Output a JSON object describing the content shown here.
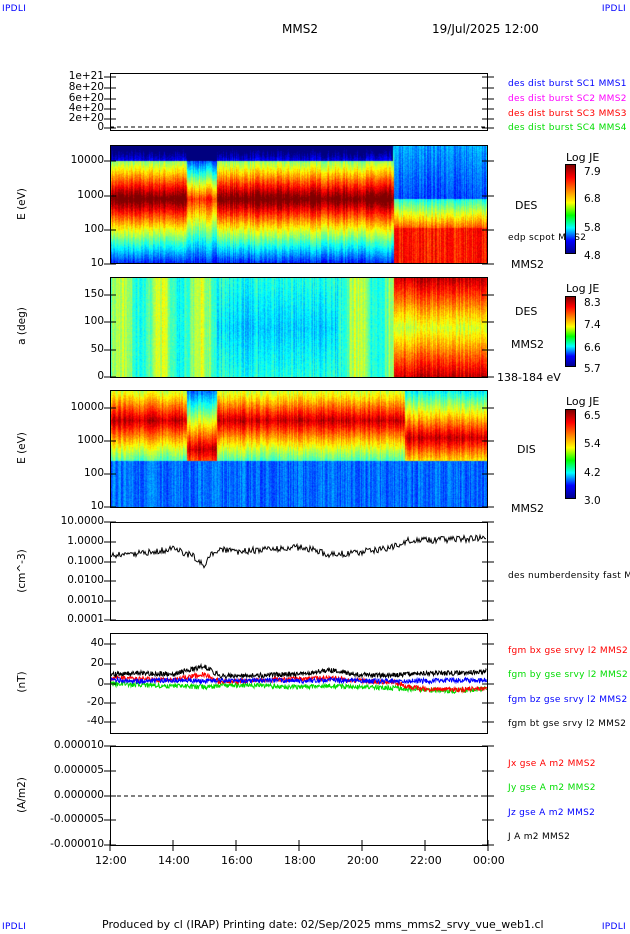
{
  "header": {
    "corner_left": "IPDLI",
    "corner_right": "IPDLI",
    "spacecraft": "MMS2",
    "datetime": "19/Jul/2025 12:00"
  },
  "footer": {
    "text": "Produced by cl (IRAP)   Printing date: 02/Sep/2025   mms_mms2_srvy_vue_web1.cl",
    "corner_left": "IPDLI",
    "corner_right": "IPDLI"
  },
  "xaxis": {
    "ticks": [
      "12:00",
      "14:00",
      "16:00",
      "18:00",
      "20:00",
      "22:00",
      "00:00"
    ]
  },
  "colors": {
    "red": "#ff0000",
    "green": "#00dd00",
    "blue": "#0000ff",
    "magenta": "#ff00ff",
    "black": "#000000"
  },
  "chart_data": [
    {
      "type": "line",
      "yticks": [
        "1e+21",
        "8e+20",
        "6e+20",
        "4e+20",
        "2e+20",
        "0"
      ],
      "ylim": [
        0,
        1e+21
      ],
      "legend": [
        {
          "label": "des dist burst SC1 MMS1",
          "color": "#0000ff"
        },
        {
          "label": "des dist burst SC2 MMS2",
          "color": "#ff00ff"
        },
        {
          "label": "des dist burst SC3 MMS3",
          "color": "#ff0000"
        },
        {
          "label": "des dist burst SC4 MMS4",
          "color": "#00dd00"
        }
      ],
      "reference_line": 0
    },
    {
      "type": "heatmap",
      "ylabel": "E (eV)",
      "yscale": "log",
      "ylim": [
        10,
        30000
      ],
      "yticks": [
        "10000",
        "1000",
        "100",
        "10"
      ],
      "colorbar_title": "Log JE",
      "colorbar_ticks": [
        "7.9",
        "6.8",
        "5.8",
        "4.8"
      ],
      "colormap": "jet",
      "labels": [
        "DES",
        "edp scpot MMS2",
        "MMS2"
      ]
    },
    {
      "type": "heatmap",
      "ylabel": "a (deg)",
      "ylim": [
        0,
        180
      ],
      "yticks": [
        "150",
        "100",
        "50",
        "0"
      ],
      "colorbar_title": "Log JE",
      "colorbar_ticks": [
        "8.3",
        "7.4",
        "6.6",
        "5.7"
      ],
      "colormap": "jet",
      "labels": [
        "DES",
        "MMS2",
        "138-184 eV"
      ]
    },
    {
      "type": "heatmap",
      "ylabel": "E (eV)",
      "yscale": "log",
      "ylim": [
        10,
        30000
      ],
      "yticks": [
        "10000",
        "1000",
        "100",
        "10"
      ],
      "colorbar_title": "Log JE",
      "colorbar_ticks": [
        "6.5",
        "5.4",
        "4.2",
        "3.0"
      ],
      "colormap": "jet",
      "labels": [
        "DIS",
        "MMS2"
      ]
    },
    {
      "type": "line",
      "ylabel": "(cm^-3)",
      "yscale": "log",
      "ylim": [
        0.0001,
        10
      ],
      "yticks": [
        "10.0000",
        "1.0000",
        "0.1000",
        "0.0100",
        "0.0010",
        "0.0001"
      ],
      "legend": [
        {
          "label": "des numberdensity fast M",
          "color": "#000000"
        }
      ],
      "series": [
        {
          "x": [
            "12:00",
            "13:00",
            "14:00",
            "15:00",
            "15:30",
            "16:00",
            "17:00",
            "18:00",
            "19:00",
            "20:00",
            "21:00",
            "21:30",
            "22:00",
            "23:00",
            "00:00"
          ],
          "values": [
            0.2,
            0.25,
            0.4,
            0.05,
            0.4,
            0.3,
            0.4,
            0.5,
            0.2,
            0.3,
            0.5,
            1.2,
            1.2,
            1.3,
            1.6
          ]
        }
      ]
    },
    {
      "type": "line",
      "ylabel": "(nT)",
      "ylim": [
        -50,
        50
      ],
      "yticks": [
        "40",
        "20",
        "0",
        "-20",
        "-40"
      ],
      "legend": [
        {
          "label": "fgm bx gse srvy l2 MMS2",
          "color": "#ff0000"
        },
        {
          "label": "fgm by gse srvy l2 MMS2",
          "color": "#00dd00"
        },
        {
          "label": "fgm bz gse srvy l2 MMS2",
          "color": "#0000ff"
        },
        {
          "label": "fgm bt gse srvy l2 MMS2",
          "color": "#000000"
        }
      ],
      "series": [
        {
          "name": "fgm bx gse srvy l2 MMS2",
          "values": [
            6,
            5,
            4,
            10,
            2,
            3,
            4,
            5,
            6,
            3,
            2,
            -3,
            -5,
            -6,
            -4
          ]
        },
        {
          "name": "fgm by gse srvy l2 MMS2",
          "values": [
            0,
            -1,
            -2,
            -3,
            -2,
            -1,
            -2,
            -3,
            -2,
            -3,
            -4,
            -5,
            -6,
            -7,
            -5
          ]
        },
        {
          "name": "fgm bz gse srvy l2 MMS2",
          "values": [
            4,
            3,
            4,
            3,
            4,
            3,
            4,
            3,
            4,
            3,
            3,
            3,
            3,
            4,
            4
          ]
        },
        {
          "name": "fgm bt gse srvy l2 MMS2",
          "values": [
            10,
            11,
            10,
            18,
            8,
            8,
            9,
            10,
            14,
            9,
            9,
            10,
            11,
            11,
            13
          ]
        }
      ],
      "x": [
        "12:00",
        "13:00",
        "14:00",
        "15:00",
        "15:30",
        "16:00",
        "17:00",
        "18:00",
        "19:00",
        "20:00",
        "21:00",
        "21:30",
        "22:00",
        "23:00",
        "00:00"
      ]
    },
    {
      "type": "line",
      "ylabel": "(A/m2)",
      "ylim": [
        -1e-05,
        1e-05
      ],
      "yticks": [
        "0.000010",
        "0.000005",
        "0.000000",
        "-0.000005",
        "-0.000010"
      ],
      "legend": [
        {
          "label": "Jx gse A m2 MMS2",
          "color": "#ff0000"
        },
        {
          "label": "Jy gse A m2 MMS2",
          "color": "#00dd00"
        },
        {
          "label": "Jz gse A m2 MMS2",
          "color": "#0000ff"
        },
        {
          "label": "J A m2 MMS2",
          "color": "#000000"
        }
      ],
      "reference_line": 0
    }
  ]
}
